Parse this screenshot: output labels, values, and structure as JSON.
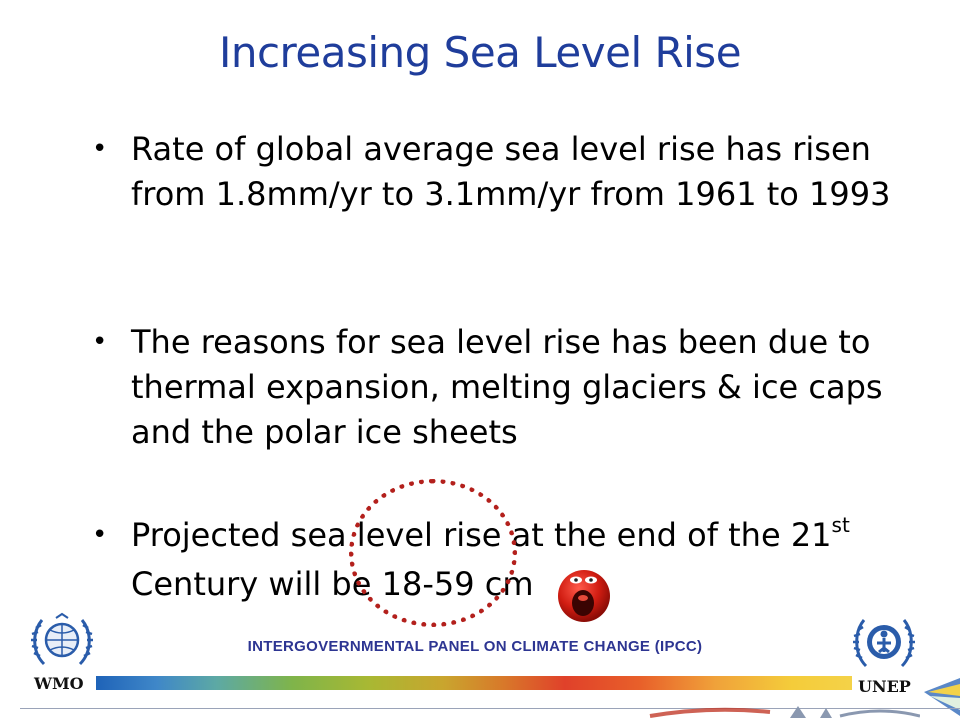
{
  "slide": {
    "title": "Increasing Sea Level Rise",
    "bullets": [
      {
        "marker": "•",
        "text": "Rate of global average sea level rise has risen from 1.8mm/yr to 3.1mm/yr from 1961 to 1993"
      },
      {
        "marker": "•",
        "text": "The reasons for sea level rise has been due to thermal expansion, melting glaciers & ice caps and the polar ice sheets"
      },
      {
        "marker": "•",
        "text_line1": "Projected sea level rise at the end of the 21",
        "superscript": "st",
        "text_line2": "Century will be 18-59 cm"
      }
    ],
    "emphasis": {
      "circle_color": "#b3201c",
      "emoticon": "shocked-face-icon"
    }
  },
  "footer": {
    "title": "INTERGOVERNMENTAL PANEL ON CLIMATE CHANGE (IPCC)",
    "left_logo": {
      "label": "WMO",
      "icon": "wmo-emblem-icon"
    },
    "right_logo": {
      "label": "UNEP",
      "icon": "unep-emblem-icon"
    }
  },
  "colors": {
    "title": "#1f3d9b",
    "footer_text": "#2d3592",
    "emblem_blue": "#2a5caa"
  }
}
